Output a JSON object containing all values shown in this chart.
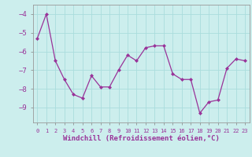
{
  "x": [
    0,
    1,
    2,
    3,
    4,
    5,
    6,
    7,
    8,
    9,
    10,
    11,
    12,
    13,
    14,
    15,
    16,
    17,
    18,
    19,
    20,
    21,
    22,
    23
  ],
  "y": [
    -5.3,
    -4.0,
    -6.5,
    -7.5,
    -8.3,
    -8.5,
    -7.3,
    -7.9,
    -7.9,
    -7.0,
    -6.2,
    -6.5,
    -5.8,
    -5.7,
    -5.7,
    -7.2,
    -7.5,
    -7.5,
    -9.3,
    -8.7,
    -8.6,
    -6.9,
    -6.4,
    -6.5
  ],
  "line_color": "#993399",
  "marker": "D",
  "markersize": 2.0,
  "linewidth": 0.9,
  "xlabel": "Windchill (Refroidissement éolien,°C)",
  "xlabel_fontsize": 6.5,
  "ytick_fontsize": 6.5,
  "xtick_fontsize": 5.0,
  "background_color": "#cceeed",
  "grid_color": "#aadddd",
  "ylim": [
    -9.8,
    -3.5
  ],
  "xlim": [
    -0.5,
    23.5
  ],
  "yticks": [
    -9,
    -8,
    -7,
    -6,
    -5,
    -4
  ],
  "xtick_labels": [
    "0",
    "1",
    "2",
    "3",
    "4",
    "5",
    "6",
    "7",
    "8",
    "9",
    "10",
    "11",
    "12",
    "13",
    "14",
    "15",
    "16",
    "17",
    "18",
    "19",
    "20",
    "21",
    "22",
    "23"
  ]
}
